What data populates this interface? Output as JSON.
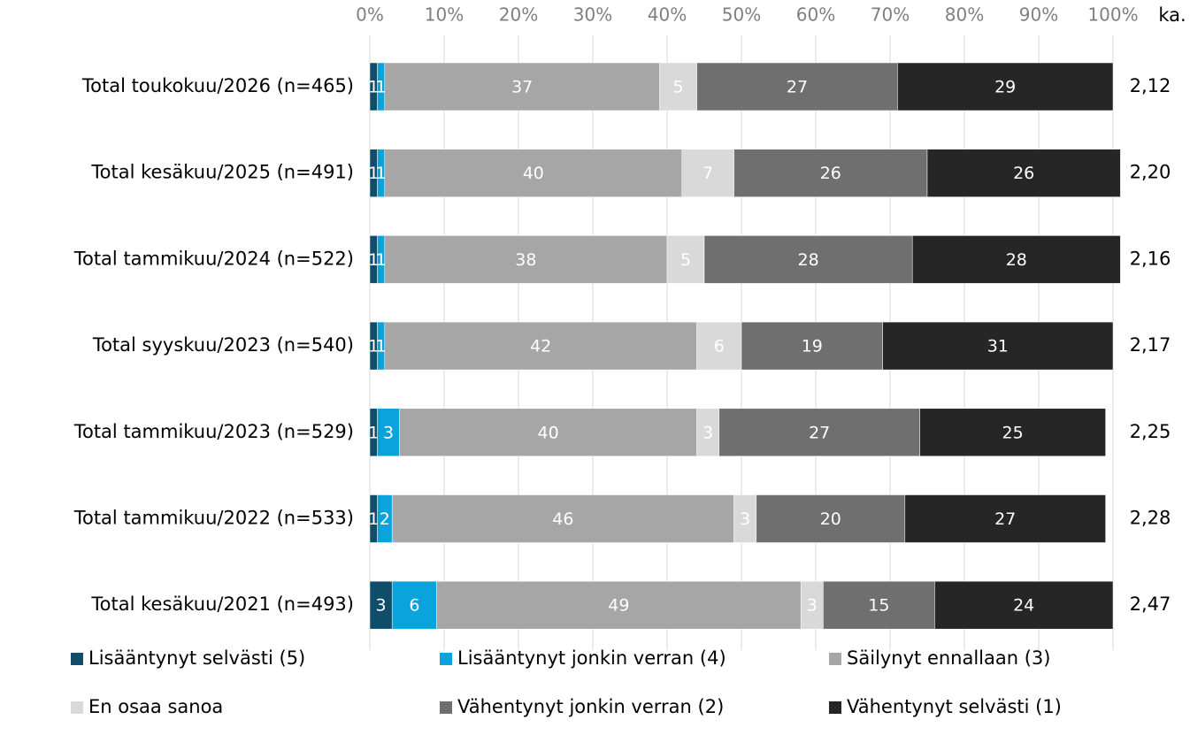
{
  "chart_data": {
    "type": "stacked-bar-horizontal",
    "categories": [
      "Total toukokuu/2026 (n=465)",
      "Total kesäkuu/2025 (n=491)",
      "Total tammikuu/2024 (n=522)",
      "Total syyskuu/2023 (n=540)",
      "Total tammikuu/2023 (n=529)",
      "Total tammikuu/2022 (n=533)",
      "Total kesäkuu/2021 (n=493)"
    ],
    "series": [
      {
        "name": "Lisääntynyt selvästi (5)",
        "color": "#0f4d6b",
        "values": [
          1,
          1,
          1,
          1,
          1,
          1,
          3
        ]
      },
      {
        "name": "Lisääntynyt jonkin verran (4)",
        "color": "#0aa3db",
        "values": [
          1,
          1,
          1,
          1,
          3,
          2,
          6
        ]
      },
      {
        "name": "Säilynyt ennallaan (3)",
        "color": "#a6a6a6",
        "values": [
          37,
          40,
          38,
          42,
          40,
          46,
          49
        ]
      },
      {
        "name": "En osaa sanoa",
        "color": "#d9d9d9",
        "values": [
          5,
          7,
          5,
          6,
          3,
          3,
          3
        ]
      },
      {
        "name": "Vähentynyt jonkin verran (2)",
        "color": "#6f6f6f",
        "values": [
          27,
          26,
          28,
          19,
          27,
          20,
          15
        ]
      },
      {
        "name": "Vähentynyt selvästi (1)",
        "color": "#262626",
        "values": [
          29,
          26,
          28,
          31,
          25,
          27,
          24
        ]
      }
    ],
    "mean": {
      "label": "ka.",
      "values": [
        2.12,
        2.2,
        2.16,
        2.17,
        2.25,
        2.28,
        2.47
      ],
      "value_labels": [
        "2,12",
        "2,20",
        "2,16",
        "2,17",
        "2,25",
        "2,28",
        "2,47"
      ]
    },
    "xlim": [
      0,
      100
    ],
    "xticks": [
      {
        "value": 0,
        "label": "0%"
      },
      {
        "value": 10,
        "label": "10%"
      },
      {
        "value": 20,
        "label": "20%"
      },
      {
        "value": 30,
        "label": "30%"
      },
      {
        "value": 40,
        "label": "40%"
      },
      {
        "value": 50,
        "label": "50%"
      },
      {
        "value": 60,
        "label": "60%"
      },
      {
        "value": 70,
        "label": "70%"
      },
      {
        "value": 80,
        "label": "80%"
      },
      {
        "value": 90,
        "label": "90%"
      },
      {
        "value": 100,
        "label": "100%"
      }
    ],
    "grid": true,
    "legend": "bottom"
  }
}
